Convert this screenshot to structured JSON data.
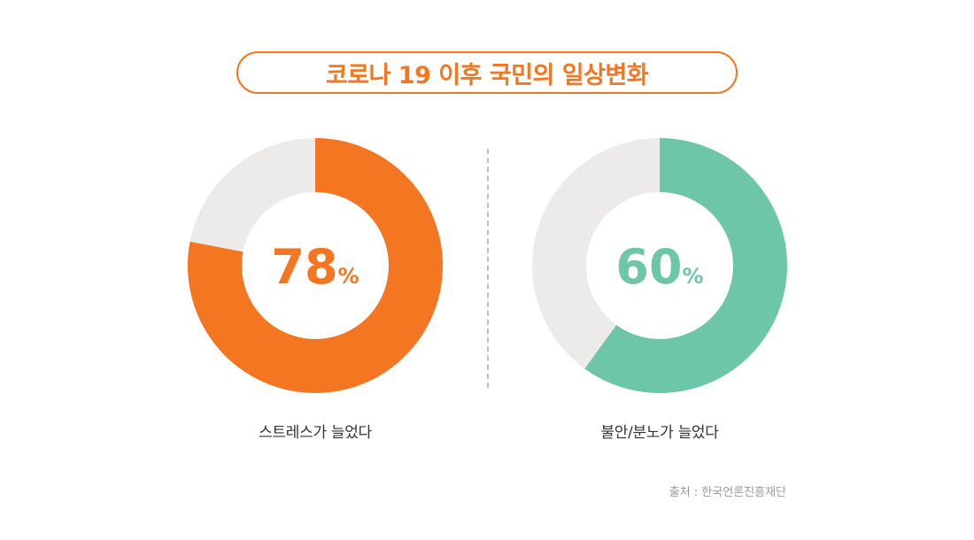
{
  "title": "코로나 19 이후 국민의 일상변화",
  "source": "출처 : 한국언론진흥재단",
  "colors": {
    "accent": "#F47621",
    "teal": "#6EC6A8",
    "track": "#EDEBEA",
    "divider": "#BDBDBD"
  },
  "chart_data": [
    {
      "type": "pie",
      "label": "스트레스가 늘었다",
      "value": 78,
      "value_text": "78",
      "unit": "%",
      "max": 100,
      "color": "#F47621"
    },
    {
      "type": "pie",
      "label": "불안/분노가 늘었다",
      "value": 60,
      "value_text": "60",
      "unit": "%",
      "max": 100,
      "color": "#6EC6A8"
    }
  ]
}
